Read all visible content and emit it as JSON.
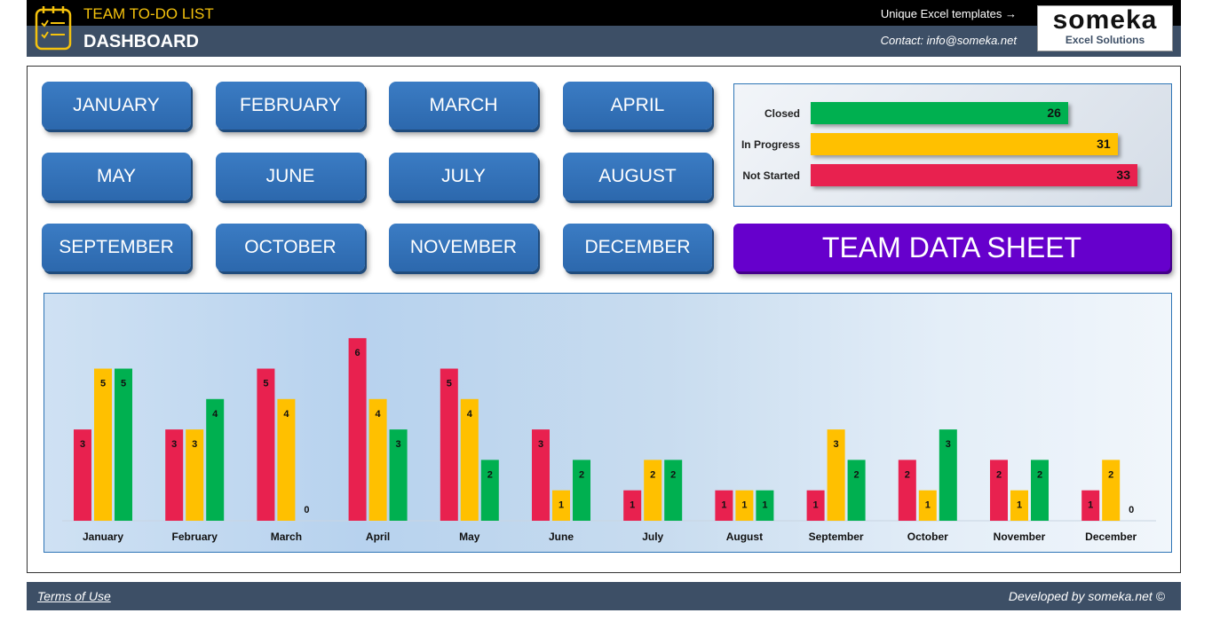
{
  "header": {
    "app_title": "TEAM TO-DO LIST",
    "page_title": "DASHBOARD",
    "templates_link": "Unique Excel templates →",
    "contact": "Contact: info@someka.net",
    "brand_name": "someka",
    "brand_sub": "Excel Solutions",
    "icon": "checklist-icon"
  },
  "months": [
    "JANUARY",
    "FEBRUARY",
    "MARCH",
    "APRIL",
    "MAY",
    "JUNE",
    "JULY",
    "AUGUST",
    "SEPTEMBER",
    "OCTOBER",
    "NOVEMBER",
    "DECEMBER"
  ],
  "status": {
    "items": [
      {
        "label": "Closed",
        "value": 26,
        "color": "#00b050"
      },
      {
        "label": "In Progress",
        "value": 31,
        "color": "#ffc000"
      },
      {
        "label": "Not Started",
        "value": 33,
        "color": "#e8214f"
      }
    ]
  },
  "team_button": "TEAM DATA SHEET",
  "chart_data": {
    "type": "bar",
    "categories": [
      "January",
      "February",
      "March",
      "April",
      "May",
      "June",
      "July",
      "August",
      "September",
      "October",
      "November",
      "December"
    ],
    "series": [
      {
        "name": "Not Started",
        "color": "#e8214f",
        "values": [
          3,
          3,
          5,
          6,
          5,
          3,
          1,
          1,
          1,
          2,
          2,
          1
        ]
      },
      {
        "name": "In Progress",
        "color": "#ffc000",
        "values": [
          5,
          3,
          4,
          4,
          4,
          1,
          2,
          1,
          3,
          1,
          1,
          2
        ]
      },
      {
        "name": "Closed",
        "color": "#00b050",
        "values": [
          5,
          4,
          0,
          3,
          2,
          2,
          2,
          1,
          2,
          3,
          2,
          0
        ]
      }
    ],
    "ylim": [
      0,
      6
    ]
  },
  "footer": {
    "terms": "Terms of Use",
    "developed": "Developed by someka.net ©"
  }
}
